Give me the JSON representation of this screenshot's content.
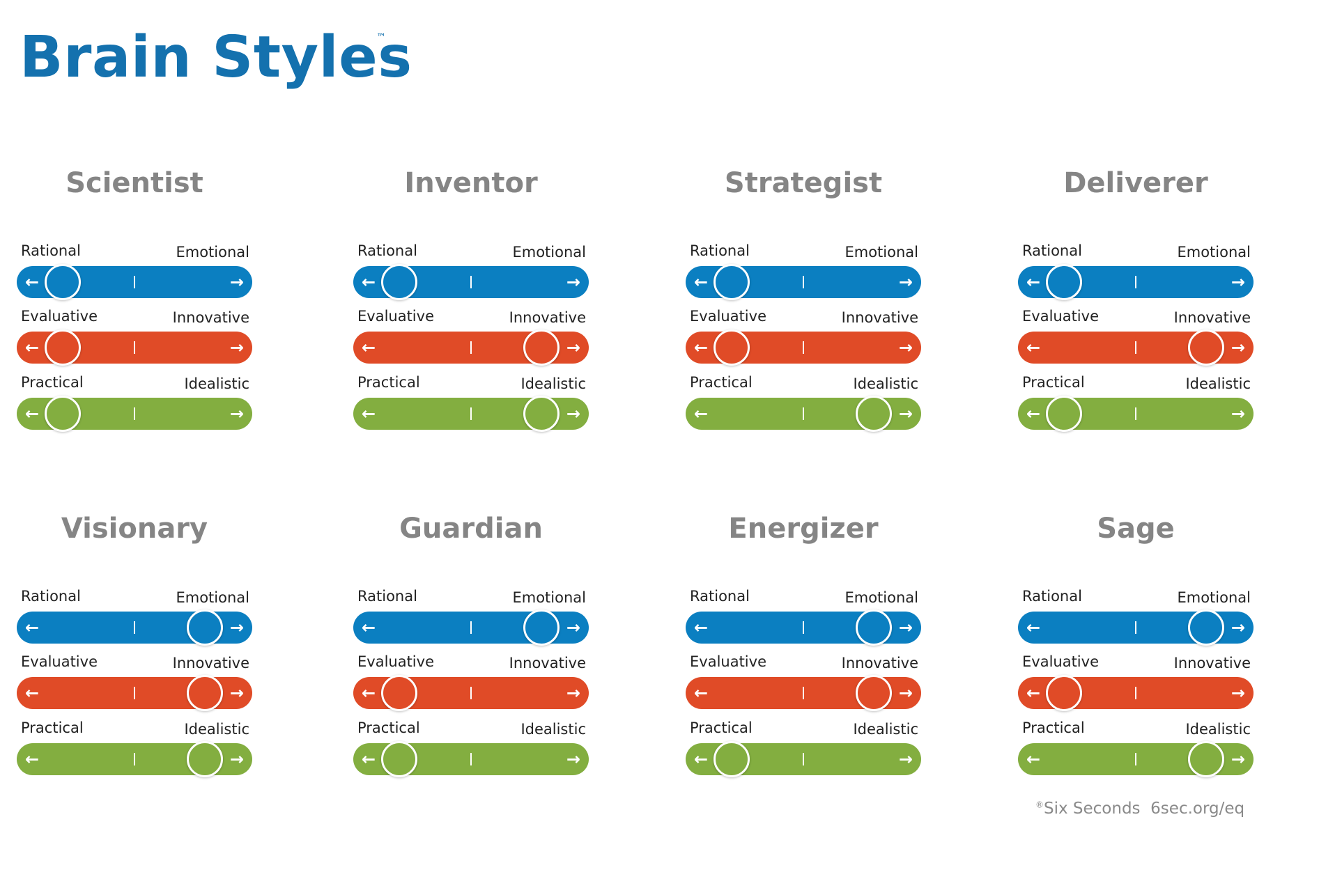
{
  "title": "Brain Styles",
  "trademark": "™",
  "colors": {
    "title": "#1471ae",
    "rational_emotional": "#0b7fc1",
    "evaluative_innovative": "#e04b27",
    "practical_idealistic": "#83ae40",
    "card_title": "#858585"
  },
  "dimension_labels": [
    {
      "left": "Rational",
      "right": "Emotional"
    },
    {
      "left": "Evaluative",
      "right": "Innovative"
    },
    {
      "left": "Practical",
      "right": "Idealistic"
    }
  ],
  "arrows": {
    "left": "←",
    "right": "→"
  },
  "styles": [
    {
      "name": "Scientist",
      "positions": [
        "left",
        "left",
        "left"
      ]
    },
    {
      "name": "Inventor",
      "positions": [
        "left",
        "right",
        "right"
      ]
    },
    {
      "name": "Strategist",
      "positions": [
        "left",
        "left",
        "right"
      ]
    },
    {
      "name": "Deliverer",
      "positions": [
        "left",
        "right",
        "left"
      ]
    },
    {
      "name": "Visionary",
      "positions": [
        "right",
        "right",
        "right"
      ]
    },
    {
      "name": "Guardian",
      "positions": [
        "right",
        "left",
        "left"
      ]
    },
    {
      "name": "Energizer",
      "positions": [
        "right",
        "right",
        "left"
      ]
    },
    {
      "name": "Sage",
      "positions": [
        "right",
        "left",
        "right"
      ]
    }
  ],
  "footer": {
    "registered": "®",
    "brand": "Six Seconds",
    "url": "6sec.org/eq"
  }
}
